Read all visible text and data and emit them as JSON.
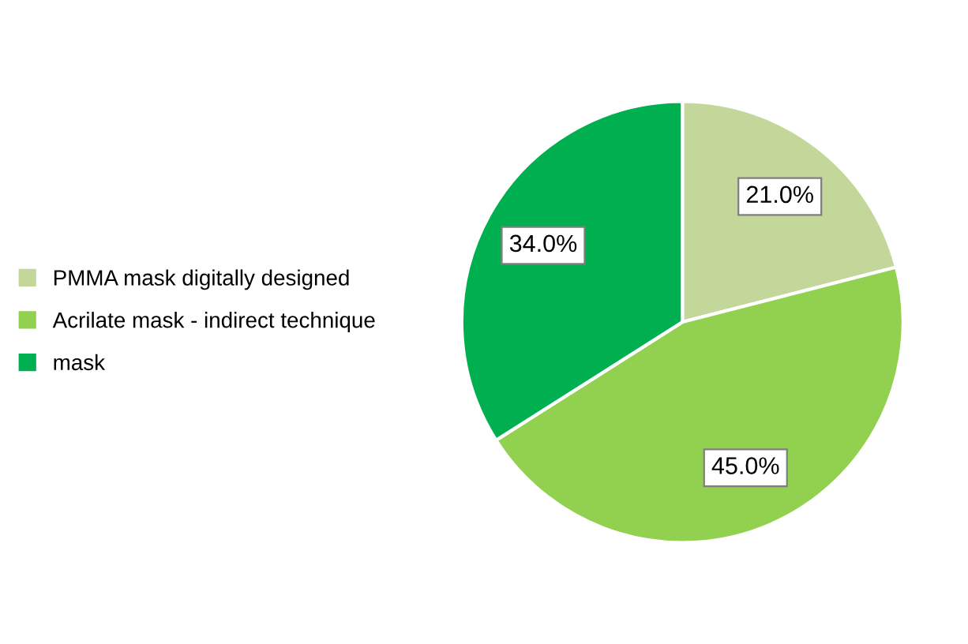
{
  "chart_data": {
    "type": "pie",
    "categories": [
      "PMMA mask digitally designed",
      "Acrilate mask - indirect technique",
      "mask"
    ],
    "values": [
      21,
      45,
      34
    ],
    "colors": [
      "#c4d79b",
      "#92d050",
      "#00b050"
    ],
    "value_labels": [
      "21.0%",
      "45.0%",
      "34.0%"
    ],
    "legend": "left"
  }
}
